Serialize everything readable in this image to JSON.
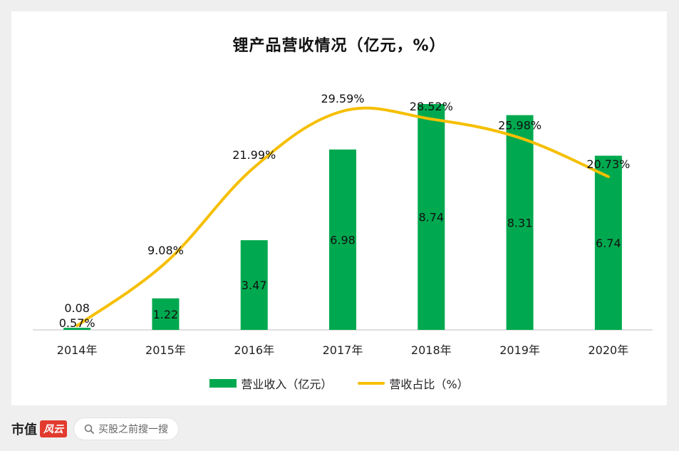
{
  "chart_data": {
    "type": "bar",
    "title": "锂产品营收情况（亿元，%）",
    "categories": [
      "2014年",
      "2015年",
      "2016年",
      "2017年",
      "2018年",
      "2019年",
      "2020年"
    ],
    "series": [
      {
        "name": "营业收入（亿元）",
        "type": "bar",
        "color": "#00a94f",
        "values": [
          0.08,
          1.22,
          3.47,
          6.98,
          8.74,
          8.31,
          6.74
        ],
        "labels": [
          "0.08",
          "1.22",
          "3.47",
          "6.98",
          "8.74",
          "8.31",
          "6.74"
        ]
      },
      {
        "name": "营收占比（%）",
        "type": "line",
        "color": "#f5bf00",
        "values": [
          0.57,
          9.08,
          21.99,
          29.59,
          28.52,
          25.98,
          20.73
        ],
        "labels": [
          "0.57%",
          "9.08%",
          "21.99%",
          "29.59%",
          "28.52%",
          "25.98%",
          "20.73%"
        ]
      }
    ],
    "legend_position": "bottom",
    "grid": false
  },
  "legend": {
    "bar_label": "营业收入（亿元）",
    "line_label": "营收占比（%）"
  },
  "footer": {
    "brand_text": "市值",
    "brand_mark": "风云",
    "search_placeholder": "买股之前搜一搜"
  }
}
